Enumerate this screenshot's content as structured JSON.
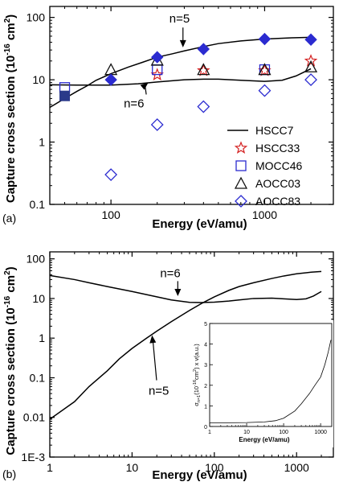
{
  "chart_data": [
    {
      "panel_label": "(a)",
      "type": "line",
      "xscale": "log",
      "yscale": "log",
      "xlim": [
        40,
        2800
      ],
      "ylim": [
        0.1,
        150
      ],
      "xlabel": "Energy (eV/amu)",
      "ylabel_main": "Capture cross section (10",
      "ylabel_exp": "-16",
      "ylabel_unit": " cm",
      "ylabel_sq": "2",
      "ylabel_close": ")",
      "x_ticks": [
        {
          "value": 100,
          "label": "100"
        },
        {
          "value": 1000,
          "label": "1000"
        }
      ],
      "y_ticks": [
        {
          "value": 0.1,
          "label": "0.1"
        },
        {
          "value": 1,
          "label": "1"
        },
        {
          "value": 10,
          "label": "10"
        },
        {
          "value": 100,
          "label": "100"
        }
      ],
      "annotations": [
        {
          "text": "n=5",
          "x": 320,
          "y": 73
        },
        {
          "text": "n=6",
          "x": 140,
          "y": 4.3
        }
      ],
      "lines": [
        {
          "name": "HSCC7",
          "curve": "n=5",
          "x": [
            40,
            50,
            60,
            70,
            80,
            100,
            130,
            160,
            200,
            250,
            300,
            400,
            500,
            700,
            1000,
            1500,
            2000
          ],
          "y": [
            3.6,
            5.0,
            6.5,
            8.0,
            9.8,
            12.5,
            16.0,
            19.0,
            23.0,
            26.0,
            29.0,
            34.0,
            38.0,
            42.0,
            45.0,
            47.0,
            48.0
          ]
        },
        {
          "name": "HSCC7",
          "curve": "n=6",
          "x": [
            40,
            60,
            100,
            150,
            200,
            300,
            400,
            500,
            700,
            1000,
            1300,
            1600,
            2000
          ],
          "y": [
            8.3,
            8.2,
            8.2,
            8.6,
            9.2,
            10.0,
            10.2,
            10.2,
            9.8,
            9.4,
            9.8,
            11.5,
            15.0
          ]
        }
      ],
      "series": [
        {
          "name": "HSCC33",
          "marker": "star",
          "color": "#d42020",
          "x": [
            200,
            400,
            1000,
            2000
          ],
          "y": [
            12,
            14,
            14,
            20
          ]
        },
        {
          "name": "MOCC46",
          "marker": "square",
          "color": "#2b2bd0",
          "x": [
            50,
            200,
            1000
          ],
          "y": [
            7.5,
            14.5,
            14.5
          ]
        },
        {
          "name": "AOCC03",
          "marker": "triangle",
          "color": "#111111",
          "x": [
            100,
            200,
            400,
            1000,
            2000
          ],
          "y": [
            14.5,
            20.5,
            14.5,
            14.5,
            16
          ]
        },
        {
          "name": "AOCC83",
          "marker": "diamond",
          "color": "#2b2bd0",
          "x": [
            100,
            200,
            400,
            1000,
            2000
          ],
          "y": [
            0.3,
            1.9,
            3.7,
            6.7,
            10
          ]
        },
        {
          "name": "",
          "marker": "filled-square",
          "color": "#2a3a8a",
          "x": [
            50
          ],
          "y": [
            5.5
          ]
        },
        {
          "name": "",
          "marker": "filled-diamond",
          "color": "#2b2bd0",
          "x": [
            100,
            200,
            400,
            1000,
            2000
          ],
          "y": [
            10,
            23,
            31,
            45,
            44
          ]
        }
      ],
      "legend_placement": "lower-right"
    },
    {
      "panel_label": "(b)",
      "type": "line",
      "xscale": "log",
      "yscale": "log",
      "xlim": [
        1,
        2800
      ],
      "ylim": [
        0.001,
        150
      ],
      "xlabel": "Energy (eV/amu)",
      "ylabel_main": "Capture cross section (10",
      "ylabel_exp": "-16",
      "ylabel_unit": " cm",
      "ylabel_sq": "2",
      "ylabel_close": ")",
      "x_ticks": [
        {
          "value": 1,
          "label": "1"
        },
        {
          "value": 10,
          "label": "10"
        },
        {
          "value": 100,
          "label": "100"
        },
        {
          "value": 1000,
          "label": "1000"
        }
      ],
      "y_ticks": [
        {
          "value": 0.001,
          "label": "1E-3"
        },
        {
          "value": 0.01,
          "label": "0.01"
        },
        {
          "value": 0.1,
          "label": "0.1"
        },
        {
          "value": 1,
          "label": "1"
        },
        {
          "value": 10,
          "label": "10"
        },
        {
          "value": 100,
          "label": "100"
        }
      ],
      "annotations": [
        {
          "text": "n=6",
          "x": 24,
          "y": 38
        },
        {
          "text": "n=5",
          "x": 19,
          "y": 0.045
        }
      ],
      "lines": [
        {
          "curve": "n=5",
          "x": [
            1,
            2,
            3,
            5,
            7,
            10,
            15,
            20,
            30,
            50,
            70,
            100,
            150,
            200,
            300,
            500,
            700,
            1000,
            1500,
            2000
          ],
          "y": [
            0.009,
            0.025,
            0.06,
            0.15,
            0.3,
            0.55,
            1.0,
            1.5,
            2.6,
            5.0,
            7.5,
            11,
            16,
            20,
            25,
            32,
            37,
            42,
            46,
            48
          ]
        },
        {
          "curve": "n=6",
          "x": [
            1,
            2,
            3,
            5,
            10,
            20,
            30,
            50,
            70,
            100,
            150,
            200,
            300,
            500,
            700,
            1000,
            1300,
            1600,
            2000
          ],
          "y": [
            38,
            30,
            25,
            20,
            15,
            11,
            9.2,
            8.0,
            7.9,
            8.1,
            8.6,
            9.2,
            10.0,
            10.2,
            9.8,
            9.4,
            9.8,
            11.5,
            15.0
          ]
        }
      ],
      "inset": {
        "type": "line",
        "xscale": "log",
        "yscale": "linear",
        "xlim": [
          1,
          2000
        ],
        "ylim": [
          0,
          5
        ],
        "xlabel": "Energy (eV/amu)",
        "ylabel_sym": "σ",
        "ylabel_sub": "n=1",
        "ylabel_mid": "(10",
        "ylabel_exp": "-16",
        "ylabel_unit": "cm",
        "ylabel_sq": "2",
        "ylabel_tail": ") x v(a.u.)",
        "x_ticks": [
          {
            "value": 1,
            "label": "1"
          },
          {
            "value": 10,
            "label": "10"
          },
          {
            "value": 100,
            "label": "100"
          },
          {
            "value": 1000,
            "label": "1000"
          }
        ],
        "y_ticks": [
          {
            "value": 0,
            "label": "0"
          },
          {
            "value": 1,
            "label": "1"
          },
          {
            "value": 2,
            "label": "2"
          },
          {
            "value": 3,
            "label": "3"
          },
          {
            "value": 4,
            "label": "4"
          },
          {
            "value": 5,
            "label": "5"
          }
        ],
        "line": {
          "x": [
            1,
            3,
            10,
            30,
            60,
            100,
            200,
            300,
            500,
            700,
            1000,
            1300,
            1600,
            1900
          ],
          "y": [
            0.18,
            0.18,
            0.19,
            0.22,
            0.28,
            0.4,
            0.75,
            1.1,
            1.6,
            2.0,
            2.4,
            3.0,
            3.6,
            4.2
          ]
        }
      }
    }
  ]
}
